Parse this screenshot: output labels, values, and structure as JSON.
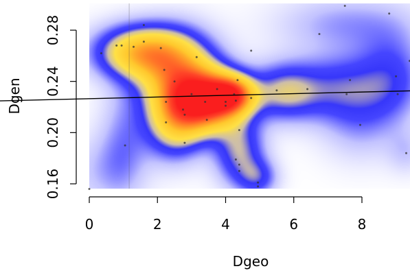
{
  "chart_data": {
    "type": "scatter",
    "overlay": "2D kernel density heatmap with fitted regression line",
    "xlabel": "Dgeo",
    "ylabel": "Dgen",
    "xlim": [
      0,
      9.4
    ],
    "ylim": [
      0.155,
      0.3
    ],
    "x_ticks": [
      0,
      2,
      4,
      6,
      8
    ],
    "x_tick_labels": [
      "0",
      "2",
      "4",
      "6",
      "8"
    ],
    "y_ticks": [
      0.16,
      0.2,
      0.24,
      0.28
    ],
    "y_tick_labels": [
      "0.16",
      "0.20",
      "0.24",
      "0.28"
    ],
    "grid": false,
    "legend": "none",
    "density_colors": [
      "#ffffff",
      "#3333ff",
      "#ffdd33",
      "#ff2222"
    ],
    "point_color": "#333333",
    "line_color": "#000000",
    "regression_line": {
      "intercept": 0.2265,
      "slope": 0.00065
    },
    "vertical_reference_x": 1.17,
    "points": [
      {
        "x": 0.0,
        "y": 0.156
      },
      {
        "x": 0.35,
        "y": 0.262
      },
      {
        "x": 0.8,
        "y": 0.268
      },
      {
        "x": 0.95,
        "y": 0.268
      },
      {
        "x": 1.05,
        "y": 0.19
      },
      {
        "x": 1.3,
        "y": 0.267
      },
      {
        "x": 1.6,
        "y": 0.284
      },
      {
        "x": 1.6,
        "y": 0.271
      },
      {
        "x": 2.1,
        "y": 0.266
      },
      {
        "x": 2.2,
        "y": 0.249
      },
      {
        "x": 2.25,
        "y": 0.224
      },
      {
        "x": 2.25,
        "y": 0.208
      },
      {
        "x": 2.5,
        "y": 0.24
      },
      {
        "x": 2.75,
        "y": 0.218
      },
      {
        "x": 2.8,
        "y": 0.214
      },
      {
        "x": 2.8,
        "y": 0.192
      },
      {
        "x": 3.0,
        "y": 0.23
      },
      {
        "x": 3.15,
        "y": 0.259
      },
      {
        "x": 3.4,
        "y": 0.224
      },
      {
        "x": 3.45,
        "y": 0.21
      },
      {
        "x": 3.75,
        "y": 0.234
      },
      {
        "x": 4.0,
        "y": 0.224
      },
      {
        "x": 4.0,
        "y": 0.221
      },
      {
        "x": 4.25,
        "y": 0.23
      },
      {
        "x": 4.3,
        "y": 0.225
      },
      {
        "x": 4.3,
        "y": 0.179
      },
      {
        "x": 4.35,
        "y": 0.241
      },
      {
        "x": 4.4,
        "y": 0.202
      },
      {
        "x": 4.4,
        "y": 0.175
      },
      {
        "x": 4.4,
        "y": 0.17
      },
      {
        "x": 4.75,
        "y": 0.227
      },
      {
        "x": 4.75,
        "y": 0.264
      },
      {
        "x": 4.95,
        "y": 0.161
      },
      {
        "x": 4.95,
        "y": 0.158
      },
      {
        "x": 5.5,
        "y": 0.233
      },
      {
        "x": 6.4,
        "y": 0.234
      },
      {
        "x": 6.75,
        "y": 0.277
      },
      {
        "x": 7.5,
        "y": 0.299
      },
      {
        "x": 7.55,
        "y": 0.23
      },
      {
        "x": 7.65,
        "y": 0.241
      },
      {
        "x": 7.95,
        "y": 0.206
      },
      {
        "x": 8.8,
        "y": 0.293
      },
      {
        "x": 9.0,
        "y": 0.244
      },
      {
        "x": 9.05,
        "y": 0.23
      },
      {
        "x": 9.3,
        "y": 0.184
      },
      {
        "x": 9.4,
        "y": 0.256
      }
    ],
    "density_blobs": [
      {
        "x": 3.4,
        "y": 0.225,
        "sx": 0.75,
        "sy": 0.016,
        "w": 0.9
      },
      {
        "x": 4.2,
        "y": 0.23,
        "sx": 0.45,
        "sy": 0.01,
        "w": 0.55
      },
      {
        "x": 1.5,
        "y": 0.263,
        "sx": 0.9,
        "sy": 0.014,
        "w": 0.55
      },
      {
        "x": 2.6,
        "y": 0.245,
        "sx": 0.8,
        "sy": 0.022,
        "w": 0.5
      },
      {
        "x": 2.5,
        "y": 0.205,
        "sx": 0.6,
        "sy": 0.018,
        "w": 0.35
      },
      {
        "x": 4.4,
        "y": 0.185,
        "sx": 0.5,
        "sy": 0.018,
        "w": 0.3
      },
      {
        "x": 4.95,
        "y": 0.165,
        "sx": 0.4,
        "sy": 0.01,
        "w": 0.2
      },
      {
        "x": 5.7,
        "y": 0.232,
        "sx": 0.7,
        "sy": 0.015,
        "w": 0.3
      },
      {
        "x": 7.4,
        "y": 0.235,
        "sx": 1.0,
        "sy": 0.018,
        "w": 0.24
      },
      {
        "x": 8.9,
        "y": 0.245,
        "sx": 0.7,
        "sy": 0.025,
        "w": 0.18
      },
      {
        "x": 7.5,
        "y": 0.285,
        "sx": 1.4,
        "sy": 0.016,
        "w": 0.13
      },
      {
        "x": 1.0,
        "y": 0.195,
        "sx": 0.5,
        "sy": 0.03,
        "w": 0.12
      },
      {
        "x": 7.9,
        "y": 0.205,
        "sx": 0.8,
        "sy": 0.02,
        "w": 0.1
      },
      {
        "x": 9.3,
        "y": 0.185,
        "sx": 0.4,
        "sy": 0.012,
        "w": 0.08
      },
      {
        "x": 0.4,
        "y": 0.17,
        "sx": 0.8,
        "sy": 0.02,
        "w": 0.09
      }
    ]
  }
}
